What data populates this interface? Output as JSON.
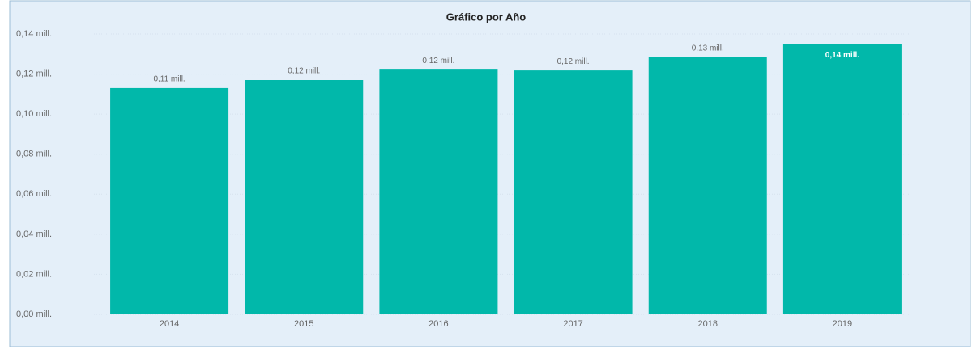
{
  "chart_data": {
    "type": "bar",
    "title": "Gráfico por Año",
    "categories": [
      "2014",
      "2015",
      "2016",
      "2017",
      "2018",
      "2019"
    ],
    "values": [
      0.113,
      0.117,
      0.1222,
      0.1218,
      0.1283,
      0.135
    ],
    "value_labels": [
      "0,11 mill.",
      "0,12 mill.",
      "0,12 mill.",
      "0,12 mill.",
      "0,13 mill.",
      "0,14 mill."
    ],
    "color": "#01b8aa",
    "ylim": [
      0,
      0.14
    ],
    "yticks": [
      {
        "value": 0,
        "label": "0,00 mill."
      },
      {
        "value": 0.02,
        "label": "0,02 mill."
      },
      {
        "value": 0.04,
        "label": "0,04 mill."
      },
      {
        "value": 0.06,
        "label": "0,06 mill."
      },
      {
        "value": 0.08,
        "label": "0,08 mill."
      },
      {
        "value": 0.1,
        "label": "0,10 mill."
      },
      {
        "value": 0.12,
        "label": "0,12 mill."
      },
      {
        "value": 0.14,
        "label": "0,14 mill."
      }
    ],
    "grid": true
  }
}
